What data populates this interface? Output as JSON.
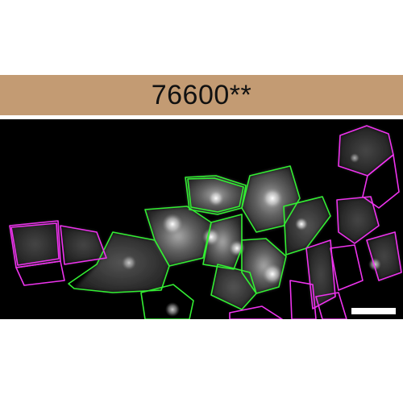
{
  "panel": {
    "label": "76600**",
    "header_color": "#c39b73",
    "background_color": "#000000"
  },
  "micrograph": {
    "outline_colors": {
      "green": "#33ee33",
      "magenta": "#ee33ee"
    },
    "scale_bar_color": "#ffffff"
  }
}
